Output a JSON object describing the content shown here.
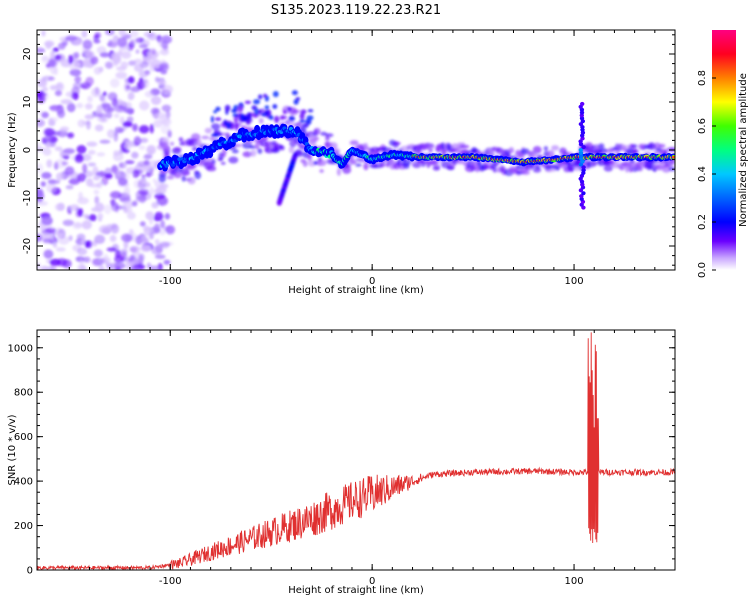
{
  "title": "S135.2023.119.22.23.R21",
  "colors": {
    "snr_line": "#e03030",
    "colormap": [
      "#ffffff",
      "#c9a7ff",
      "#6a00ff",
      "#0000ff",
      "#00c8ff",
      "#00ff40",
      "#ffff00",
      "#ff6a00",
      "#ff0040",
      "#ff0080"
    ]
  },
  "chart_data": [
    {
      "type": "heatmap",
      "title": "S135.2023.119.22.23.R21",
      "xlabel": "Height of straight line (km)",
      "ylabel": "Frequency (Hz)",
      "xlim": [
        -166,
        150
      ],
      "ylim": [
        -25,
        25
      ],
      "x_ticks": [
        "-100",
        "0",
        "100"
      ],
      "y_ticks": [
        "20",
        "10",
        "0",
        "-10",
        "-20"
      ],
      "colorbar": {
        "label": "Normalized spectral amplitude",
        "range": [
          0,
          1
        ],
        "ticks": [
          "0.0",
          "0.2",
          "0.4",
          "0.6",
          "0.8"
        ]
      },
      "ridge": [
        [
          -105,
          -3
        ],
        [
          -90,
          -2
        ],
        [
          -75,
          1
        ],
        [
          -65,
          3
        ],
        [
          -50,
          4
        ],
        [
          -38,
          4
        ],
        [
          -30,
          0
        ],
        [
          -20,
          -1
        ],
        [
          -15,
          -3
        ],
        [
          -10,
          0
        ],
        [
          0,
          -2
        ],
        [
          10,
          -1
        ],
        [
          25,
          -1.5
        ],
        [
          50,
          -1.5
        ],
        [
          75,
          -2.5
        ],
        [
          90,
          -2
        ],
        [
          100,
          -1.5
        ],
        [
          110,
          -1.5
        ],
        [
          150,
          -1.5
        ]
      ],
      "noise_region_x": [
        -166,
        -100
      ],
      "spike": {
        "x": 104,
        "ylim": [
          -12,
          10
        ]
      }
    },
    {
      "type": "line",
      "xlabel": "Height of straight line (km)",
      "ylabel": "SNR (10 * v/v)",
      "xlim": [
        -166,
        150
      ],
      "ylim": [
        0,
        1080
      ],
      "x_ticks": [
        "-100",
        "0",
        "100"
      ],
      "y_ticks": [
        "0",
        "200",
        "400",
        "600",
        "800",
        "1000"
      ],
      "trend": [
        [
          -166,
          10
        ],
        [
          -110,
          10
        ],
        [
          -95,
          30
        ],
        [
          -80,
          80
        ],
        [
          -70,
          110
        ],
        [
          -60,
          140
        ],
        [
          -50,
          170
        ],
        [
          -40,
          200
        ],
        [
          -30,
          230
        ],
        [
          -20,
          270
        ],
        [
          -10,
          310
        ],
        [
          0,
          340
        ],
        [
          10,
          370
        ],
        [
          20,
          400
        ],
        [
          30,
          430
        ],
        [
          50,
          440
        ],
        [
          80,
          445
        ],
        [
          100,
          440
        ],
        [
          110,
          440
        ],
        [
          150,
          440
        ]
      ],
      "spike": {
        "x_range": [
          107,
          112
        ],
        "max": 1080,
        "min": 120
      }
    }
  ]
}
